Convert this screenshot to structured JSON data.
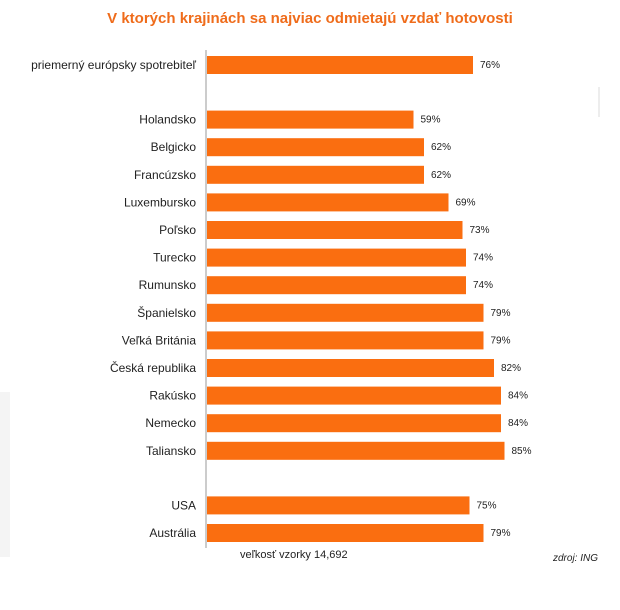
{
  "chart_data": {
    "type": "bar",
    "orientation": "horizontal",
    "title": "V ktorých krajinách sa najviac odmietajú vzdať hotovosti",
    "categories": [
      "priemerný európsky spotrebiteľ",
      "Holandsko",
      "Belgicko",
      "Francúzsko",
      "Luxembursko",
      "Poľsko",
      "Turecko",
      "Rumunsko",
      "Španielsko",
      "Veľká Británia",
      "Česká republika",
      "Rakúsko",
      "Nemecko",
      "Taliansko",
      "USA",
      "Austrália"
    ],
    "values": [
      76,
      59,
      62,
      62,
      69,
      73,
      74,
      74,
      79,
      79,
      82,
      84,
      84,
      85,
      75,
      79
    ],
    "value_labels": [
      "76%",
      "59%",
      "62%",
      "62%",
      "69%",
      "73%",
      "74%",
      "74%",
      "79%",
      "79%",
      "82%",
      "84%",
      "84%",
      "85%",
      "75%",
      "79%"
    ],
    "groups": [
      [
        0
      ],
      [
        1,
        2,
        3,
        4,
        5,
        6,
        7,
        8,
        9,
        10,
        11,
        12,
        13
      ],
      [
        14,
        15
      ]
    ],
    "xlim": [
      0,
      100
    ],
    "bar_color": "#fa6e10",
    "xlabel": "",
    "ylabel": ""
  },
  "notes": {
    "sample_label": "veľkosť vzorky",
    "sample_value": "14,692",
    "source": "zdroj: ING"
  },
  "colors": {
    "title": "#ef6c1b",
    "bar": "#fa6e10",
    "axis": "#999999",
    "text": "#222222"
  }
}
